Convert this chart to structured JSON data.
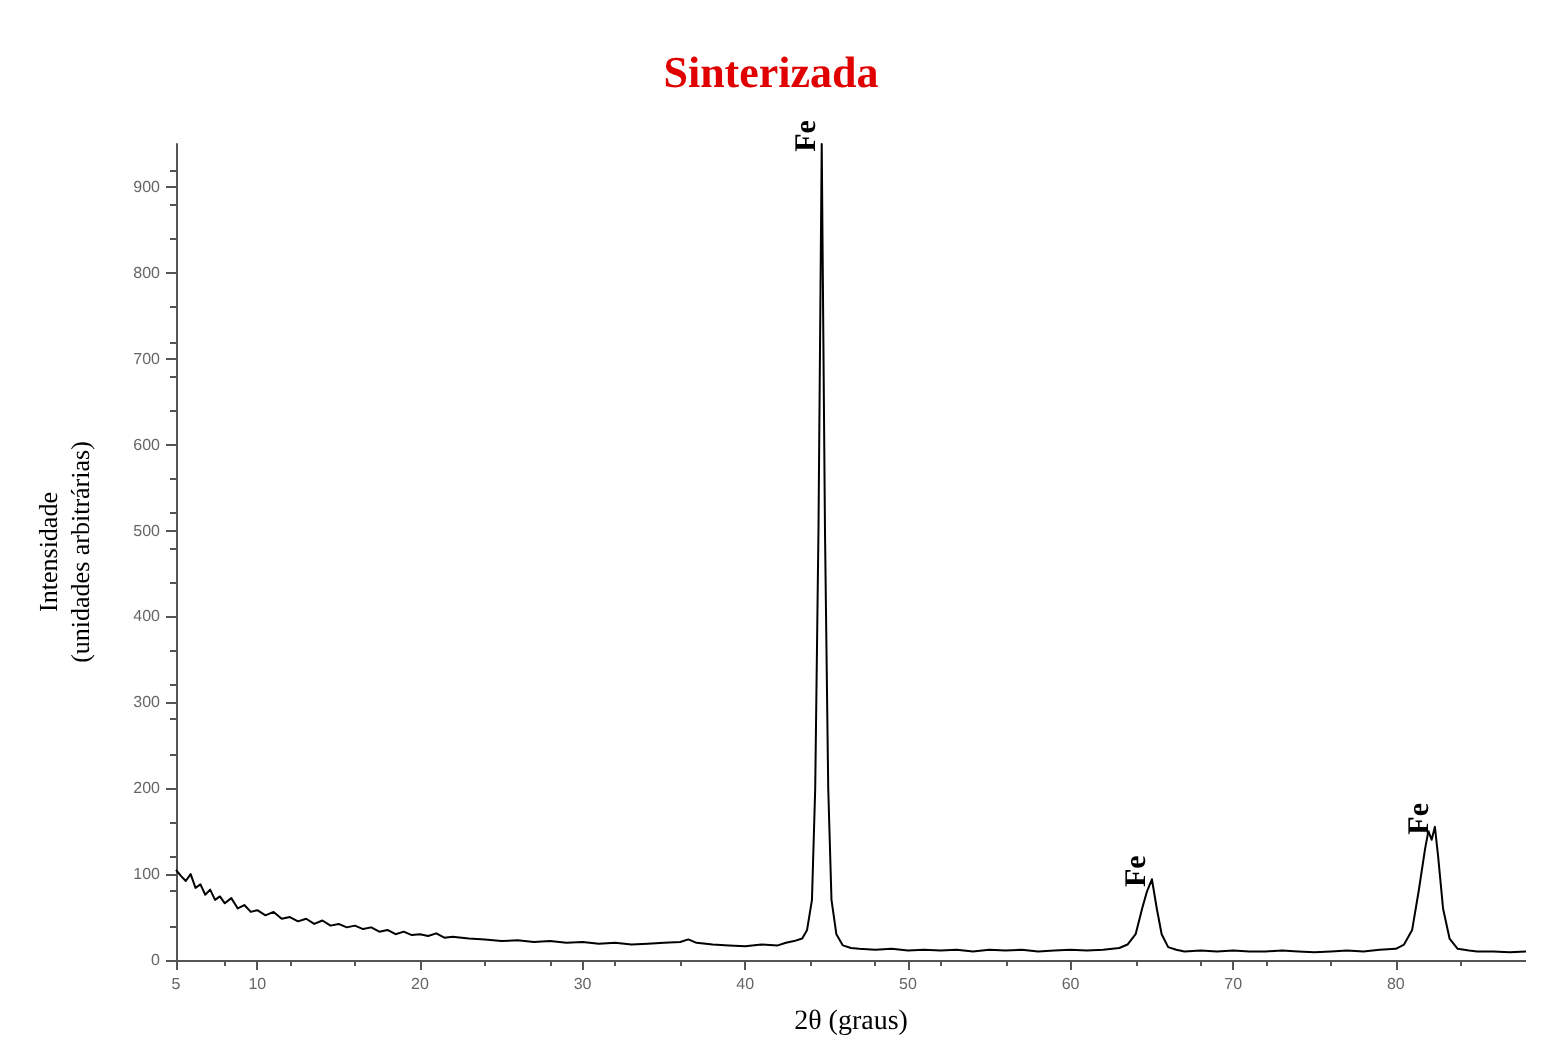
{
  "chart_data": {
    "type": "line",
    "title": "Sinterizada",
    "xlabel": "2θ (graus)",
    "ylabel": "Intensidade\n(unidades arbitrárias)",
    "xlim": [
      5,
      88
    ],
    "xticks": [
      5,
      10,
      20,
      30,
      40,
      50,
      60,
      70,
      80
    ],
    "ylim": [
      0,
      950
    ],
    "yticks": [
      0,
      100,
      200,
      300,
      400,
      500,
      600,
      700,
      800,
      900
    ],
    "grid": false,
    "marker": "none",
    "line_style": "solid",
    "series": [
      {
        "color": "#000000",
        "x": [
          5,
          5.3,
          5.6,
          5.9,
          6.2,
          6.5,
          6.8,
          7.1,
          7.4,
          7.7,
          8,
          8.4,
          8.8,
          9.2,
          9.6,
          10,
          10.5,
          11,
          11.5,
          12,
          12.5,
          13,
          13.5,
          14,
          14.5,
          15,
          15.5,
          16,
          16.5,
          17,
          17.5,
          18,
          18.5,
          19,
          19.5,
          20,
          20.5,
          21,
          21.5,
          22,
          23,
          24,
          25,
          26,
          27,
          28,
          29,
          30,
          31,
          32,
          33,
          34,
          35,
          36,
          36.5,
          37,
          38,
          39,
          40,
          41,
          42,
          42.5,
          43,
          43.5,
          43.8,
          44.1,
          44.3,
          44.5,
          44.7,
          44.9,
          45.1,
          45.3,
          45.6,
          46,
          46.5,
          47,
          48,
          49,
          50,
          51,
          52,
          53,
          54,
          55,
          56,
          57,
          58,
          59,
          60,
          61,
          62,
          63,
          63.5,
          64,
          64.4,
          64.7,
          65,
          65.3,
          65.6,
          66,
          66.5,
          67,
          68,
          69,
          70,
          71,
          72,
          73,
          74,
          75,
          76,
          77,
          78,
          79,
          80,
          80.5,
          81,
          81.4,
          81.8,
          82,
          82.2,
          82.4,
          82.6,
          82.9,
          83.3,
          83.8,
          84.5,
          85,
          86,
          87,
          88
        ],
        "values": [
          105,
          98,
          92,
          100,
          84,
          88,
          76,
          82,
          70,
          74,
          66,
          72,
          60,
          64,
          56,
          58,
          52,
          56,
          48,
          50,
          45,
          48,
          42,
          46,
          40,
          42,
          38,
          40,
          36,
          38,
          33,
          35,
          30,
          33,
          29,
          30,
          28,
          31,
          26,
          27,
          25,
          24,
          22,
          23,
          21,
          22,
          20,
          21,
          19,
          20,
          18,
          19,
          20,
          21,
          24,
          20,
          18,
          17,
          16,
          18,
          17,
          20,
          22,
          25,
          35,
          70,
          200,
          500,
          950,
          500,
          200,
          70,
          30,
          17,
          14,
          13,
          12,
          13,
          11,
          12,
          11,
          12,
          10,
          12,
          11,
          12,
          10,
          11,
          12,
          11,
          12,
          14,
          18,
          30,
          60,
          80,
          94,
          60,
          30,
          15,
          12,
          10,
          11,
          10,
          11,
          10,
          10,
          11,
          10,
          9,
          10,
          11,
          10,
          12,
          13,
          18,
          35,
          80,
          130,
          150,
          140,
          155,
          120,
          60,
          25,
          13,
          11,
          10,
          10,
          9,
          10
        ]
      }
    ],
    "annotations": [
      {
        "text": "Fe",
        "x": 44.7,
        "y": 950
      },
      {
        "text": "Fe",
        "x": 65,
        "y": 94
      },
      {
        "text": "Fe",
        "x": 82.4,
        "y": 155
      }
    ]
  }
}
